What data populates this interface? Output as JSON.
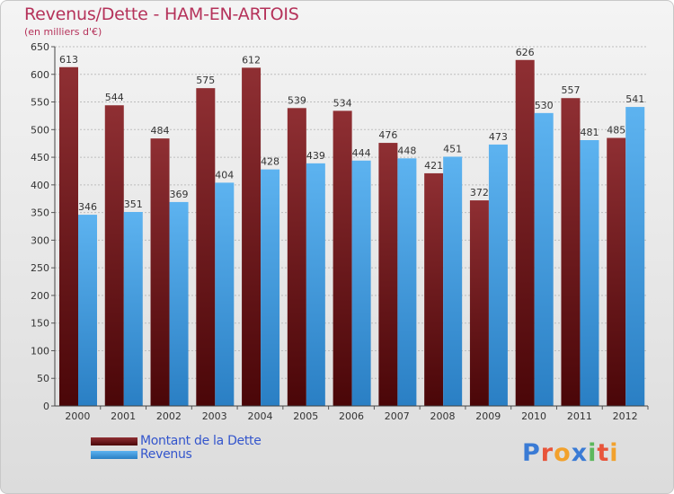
{
  "header": {
    "title": "Revenus/Dette - HAM-EN-ARTOIS",
    "subtitle": "(en milliers d'€)"
  },
  "colors": {
    "dette": "#7a1a1e",
    "revenus": "#4aa3e6",
    "title": "#b5325a",
    "legend_text": "#3355cc"
  },
  "logo": {
    "letters": [
      {
        "ch": "P",
        "color": "#3a7bd5"
      },
      {
        "ch": "r",
        "color": "#e8543a"
      },
      {
        "ch": "o",
        "color": "#f2a12c"
      },
      {
        "ch": "x",
        "color": "#3a7bd5"
      },
      {
        "ch": "i",
        "color": "#5cb85c"
      },
      {
        "ch": "t",
        "color": "#e8543a"
      },
      {
        "ch": "i",
        "color": "#f2a12c"
      }
    ]
  },
  "chart_data": {
    "type": "bar",
    "categories": [
      "2000",
      "2001",
      "2002",
      "2003",
      "2004",
      "2005",
      "2006",
      "2007",
      "2008",
      "2009",
      "2010",
      "2011",
      "2012"
    ],
    "series": [
      {
        "name": "Montant de la Dette",
        "values": [
          613,
          544,
          484,
          575,
          612,
          539,
          534,
          476,
          421,
          372,
          626,
          557,
          485
        ]
      },
      {
        "name": "Revenus",
        "values": [
          346,
          351,
          369,
          404,
          428,
          439,
          444,
          448,
          451,
          473,
          530,
          481,
          541
        ]
      }
    ],
    "ylim": [
      0,
      650
    ],
    "yticks": [
      0,
      50,
      100,
      150,
      200,
      250,
      300,
      350,
      400,
      450,
      500,
      550,
      600,
      650
    ],
    "grid": true,
    "legend": "bottom-left"
  }
}
